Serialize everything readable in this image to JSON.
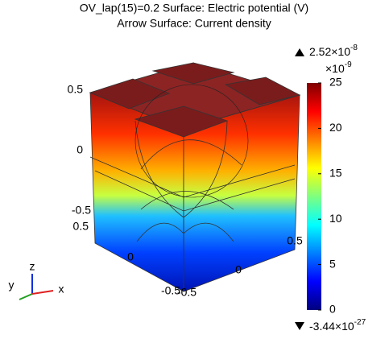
{
  "chart_data": {
    "type": "surface3d",
    "title": "OV_lap(15)=0.2   Surface: Electric potential (V)",
    "subtitle": "Arrow Surface: Current density",
    "colorbar": {
      "ylim": [
        0,
        25
      ],
      "yticks": [
        0,
        5,
        10,
        15,
        20,
        25
      ],
      "scale": {
        "mantissa": "×10",
        "exponent": "-9"
      },
      "max_label": {
        "mantissa": "2.52×10",
        "exponent": "-8"
      },
      "min_label": {
        "mantissa": "-3.44×10",
        "exponent": "-27"
      },
      "colormap": [
        "#00007f",
        "#0000ff",
        "#007fff",
        "#00ffff",
        "#7fff7f",
        "#ffff00",
        "#ff7f00",
        "#ff0000",
        "#7f0000"
      ]
    },
    "zticks": [
      0.5,
      0,
      -0.5
    ],
    "yticks3d": [
      0.5,
      0,
      -0.5
    ],
    "xticks3d": [
      -0.5,
      0,
      0.5
    ],
    "triad": {
      "x": "x",
      "y": "y",
      "z": "z"
    }
  }
}
